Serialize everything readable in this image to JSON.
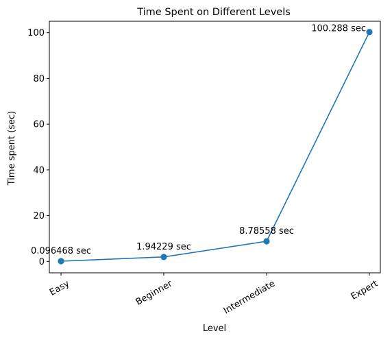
{
  "chart_data": {
    "type": "line",
    "title": "Time Spent on Different Levels",
    "xlabel": "Level",
    "ylabel": "Time spent (sec)",
    "categories": [
      "Easy",
      "Beginner",
      "Intermediate",
      "Expert"
    ],
    "values": [
      0.096468,
      1.94229,
      8.78558,
      100.288
    ],
    "data_labels": [
      "0.096468 sec",
      "1.94229 sec",
      "8.78558 sec",
      "100.288 sec"
    ],
    "yticks": [
      0,
      20,
      40,
      60,
      80,
      100
    ],
    "ylim": [
      -5,
      105
    ],
    "grid": false,
    "legend": "none",
    "colors": {
      "line": "#1f77b4",
      "marker": "#1f77b4",
      "axis": "#000000"
    }
  }
}
